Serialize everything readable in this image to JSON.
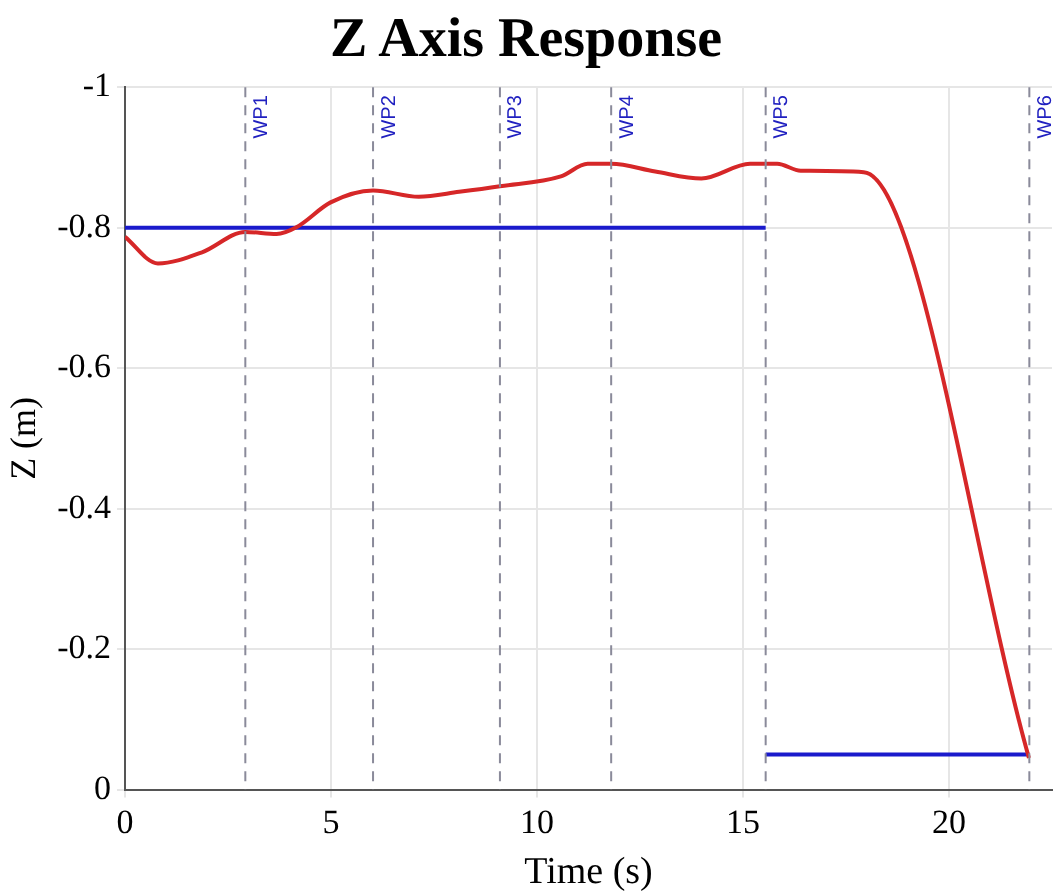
{
  "chart_data": {
    "type": "line",
    "title": "Z Axis Response",
    "xlabel": "Time (s)",
    "ylabel": "Z (m)",
    "xlim": [
      0,
      22.5
    ],
    "xticks": [
      0,
      5,
      10,
      15,
      20
    ],
    "ylim": [
      0,
      -1
    ],
    "yticks": [
      -1,
      -0.8,
      -0.6,
      -0.4,
      -0.2,
      0
    ],
    "grid": true,
    "legend": false,
    "marker": "none",
    "line_style": "solid",
    "series": [
      {
        "color": "#d62728",
        "x": [
          0,
          0.8,
          1.87,
          2.92,
          3.68,
          4.17,
          4.99,
          6.02,
          7.13,
          8.11,
          9.1,
          10.58,
          11.23,
          11.8,
          12.87,
          13.99,
          15.17,
          15.83,
          16.4,
          17.93,
          21.94
        ],
        "values": [
          -0.787,
          -0.749,
          -0.765,
          -0.794,
          -0.791,
          -0.801,
          -0.836,
          -0.853,
          -0.844,
          -0.851,
          -0.859,
          -0.873,
          -0.891,
          -0.891,
          -0.88,
          -0.87,
          -0.891,
          -0.891,
          -0.881,
          -0.879,
          -0.045
        ]
      },
      {
        "color": "#1a1acc",
        "x": [
          0,
          15.55
        ],
        "values": [
          -0.8,
          -0.8
        ]
      },
      {
        "color": "#1a1acc",
        "x": [
          15.55,
          21.95
        ],
        "values": [
          -0.05,
          -0.05
        ]
      }
    ],
    "ref_lines": [
      {
        "axis": "x",
        "value": 2.92,
        "label": "WP1",
        "color": "#8a8a9a",
        "line_style": "dashed"
      },
      {
        "axis": "x",
        "value": 6.02,
        "label": "WP2",
        "color": "#8a8a9a",
        "line_style": "dashed"
      },
      {
        "axis": "x",
        "value": 9.1,
        "label": "WP3",
        "color": "#8a8a9a",
        "line_style": "dashed"
      },
      {
        "axis": "x",
        "value": 11.8,
        "label": "WP4",
        "color": "#8a8a9a",
        "line_style": "dashed"
      },
      {
        "axis": "x",
        "value": 15.55,
        "label": "WP5",
        "color": "#8a8a9a",
        "line_style": "dashed"
      },
      {
        "axis": "x",
        "value": 21.95,
        "label": "WP6",
        "color": "#8a8a9a",
        "line_style": "dashed"
      }
    ]
  }
}
